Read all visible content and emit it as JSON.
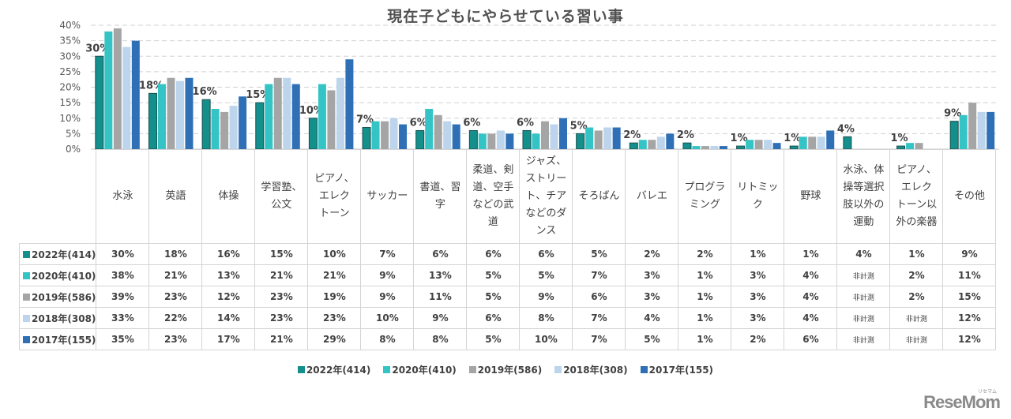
{
  "chart_data": {
    "type": "bar",
    "title": "現在子どもにやらせている習い事",
    "xlabel": "",
    "ylabel": "",
    "ylim": [
      0,
      40
    ],
    "yticks": [
      "0%",
      "5%",
      "10%",
      "15%",
      "20%",
      "25%",
      "30%",
      "35%",
      "40%"
    ],
    "grid": true,
    "legend_position": "bottom",
    "categories": [
      "水泳",
      "英語",
      "体操",
      "学習塾、公文",
      "ピアノ、エレクトーン",
      "サッカー",
      "書道、習字",
      "柔道、剣道、空手などの武道",
      "ジャズ、ストリート、チアなどのダンス",
      "そろばん",
      "バレエ",
      "プログラミング",
      "リトミック",
      "野球",
      "水泳、体操等選択肢以外の運動",
      "ピアノ、エレクトーン以外の楽器",
      "その他"
    ],
    "category_display": [
      "水泳",
      "英語",
      "体操",
      "学習塾、\n公文",
      "ピアノ、\nエレク\nトーン",
      "サッカー",
      "書道、習\n字",
      "柔道、剣\n道、空手\nなどの武\n道",
      "ジャズ、\nストリー\nト、チア\nなどのダ\nンス",
      "そろばん",
      "バレエ",
      "プログラ\nミング",
      "リトミッ\nク",
      "野球",
      "水泳、体\n操等選択\n肢以外の\n運動",
      "ピアノ、\nエレク\nトーン以\n外の楽器",
      "その他"
    ],
    "series": [
      {
        "name": "2022年(414)",
        "color": "#138f8c",
        "values": [
          30,
          18,
          16,
          15,
          10,
          7,
          6,
          6,
          6,
          5,
          2,
          2,
          1,
          1,
          4,
          1,
          9
        ],
        "display": [
          "30%",
          "18%",
          "16%",
          "15%",
          "10%",
          "7%",
          "6%",
          "6%",
          "6%",
          "5%",
          "2%",
          "2%",
          "1%",
          "1%",
          "4%",
          "1%",
          "9%"
        ]
      },
      {
        "name": "2020年(410)",
        "color": "#35c4c6",
        "values": [
          38,
          21,
          13,
          21,
          21,
          9,
          13,
          5,
          5,
          7,
          3,
          1,
          3,
          4,
          null,
          2,
          11
        ],
        "display": [
          "38%",
          "21%",
          "13%",
          "21%",
          "21%",
          "9%",
          "13%",
          "5%",
          "5%",
          "7%",
          "3%",
          "1%",
          "3%",
          "4%",
          "非計測",
          "2%",
          "11%"
        ]
      },
      {
        "name": "2019年(586)",
        "color": "#a5a5a5",
        "values": [
          39,
          23,
          12,
          23,
          19,
          9,
          11,
          5,
          9,
          6,
          3,
          1,
          3,
          4,
          null,
          2,
          15
        ],
        "display": [
          "39%",
          "23%",
          "12%",
          "23%",
          "19%",
          "9%",
          "11%",
          "5%",
          "9%",
          "6%",
          "3%",
          "1%",
          "3%",
          "4%",
          "非計測",
          "2%",
          "15%"
        ]
      },
      {
        "name": "2018年(308)",
        "color": "#bcd4ec",
        "values": [
          33,
          22,
          14,
          23,
          23,
          10,
          9,
          6,
          8,
          7,
          4,
          1,
          3,
          4,
          null,
          null,
          12
        ],
        "display": [
          "33%",
          "22%",
          "14%",
          "23%",
          "23%",
          "10%",
          "9%",
          "6%",
          "8%",
          "7%",
          "4%",
          "1%",
          "3%",
          "4%",
          "非計測",
          "非計測",
          "12%"
        ]
      },
      {
        "name": "2017年(155)",
        "color": "#2e6fb5",
        "values": [
          35,
          23,
          17,
          21,
          29,
          8,
          8,
          5,
          10,
          7,
          5,
          1,
          2,
          6,
          null,
          null,
          12
        ],
        "display": [
          "35%",
          "23%",
          "17%",
          "21%",
          "29%",
          "8%",
          "8%",
          "5%",
          "10%",
          "7%",
          "5%",
          "1%",
          "2%",
          "6%",
          "非計測",
          "非計測",
          "12%"
        ]
      }
    ],
    "data_labels_series": "2022年(414)"
  },
  "branding": {
    "logo_text": "ReseMom",
    "logo_kana": "リセマム"
  }
}
